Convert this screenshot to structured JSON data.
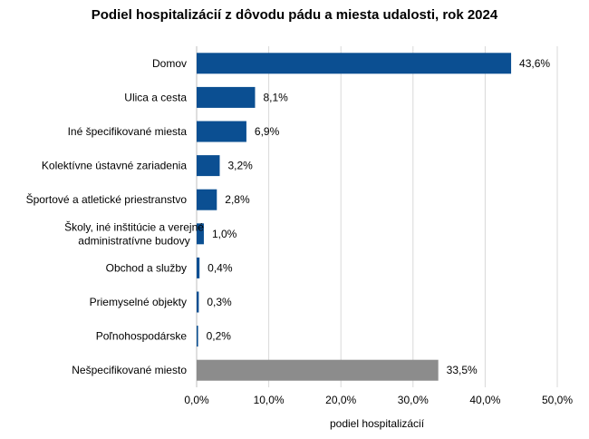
{
  "chart_data": {
    "type": "bar",
    "orientation": "horizontal",
    "title": "Podiel hospitalizácií z dôvodu pádu a miesta udalosti, rok 2024",
    "xlabel": "podiel hospitalizácií",
    "ylabel": "",
    "xlim": [
      0,
      50
    ],
    "x_ticks": [
      "0,0%",
      "10,0%",
      "20,0%",
      "30,0%",
      "40,0%",
      "50,0%"
    ],
    "grid": true,
    "legend": "none",
    "categories": [
      [
        "Domov"
      ],
      [
        "Ulica a cesta"
      ],
      [
        "Iné špecifikované miesta"
      ],
      [
        "Kolektívne ústavné zariadenia"
      ],
      [
        "Športové a atletické priestranstvo"
      ],
      [
        "Školy, iné inštitúcie a verejné",
        "administratívne budovy"
      ],
      [
        "Obchod a služby"
      ],
      [
        "Priemyselné objekty"
      ],
      [
        "Poľnohospodárske"
      ],
      [
        "Nešpecifikované miesto"
      ]
    ],
    "values": [
      43.6,
      8.1,
      6.9,
      3.2,
      2.8,
      1.0,
      0.4,
      0.3,
      0.2,
      33.5
    ],
    "value_labels": [
      "43,6%",
      "8,1%",
      "6,9%",
      "3,2%",
      "2,8%",
      "1,0%",
      "0,4%",
      "0,3%",
      "0,2%",
      "33,5%"
    ],
    "colors": {
      "bar": "#0b4f92",
      "unspecified_bar": "#8c8c8c",
      "grid": "#d9d9d9",
      "axis": "#bfbfbf"
    }
  }
}
